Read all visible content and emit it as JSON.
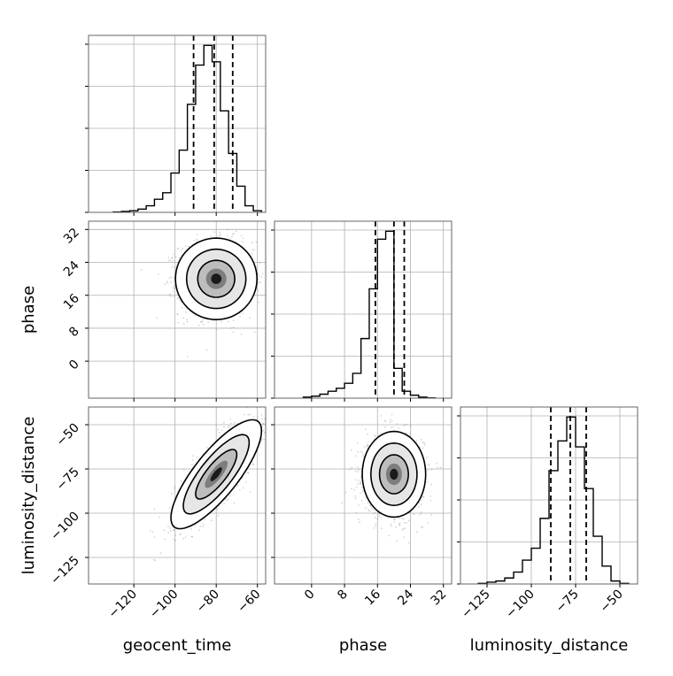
{
  "chart_data": {
    "type": "corner",
    "parameters": [
      "geocent_time",
      "phase",
      "luminosity_distance"
    ],
    "axis_labels": {
      "geocent_time": "geocent_time",
      "phase": "phase",
      "luminosity_distance": "luminosity_distance"
    },
    "ranges": {
      "geocent_time": [
        -142,
        -56
      ],
      "phase": [
        -9,
        34
      ],
      "luminosity_distance": [
        -140,
        -40
      ]
    },
    "ticks": {
      "geocent_time": [
        -120,
        -100,
        -80,
        -60
      ],
      "phase": [
        0,
        8,
        16,
        24,
        32
      ],
      "luminosity_distance": [
        -125,
        -100,
        -75,
        -50
      ]
    },
    "tick_labels": {
      "geocent_time": [
        "−120",
        "−100",
        "−80",
        "−60"
      ],
      "phase": [
        "0",
        "8",
        "16",
        "24",
        "32"
      ],
      "luminosity_distance": [
        "−125",
        "−100",
        "−75",
        "−50"
      ]
    },
    "quantile_lines": {
      "geocent_time": [
        -91,
        -81,
        -72
      ],
      "phase": [
        15.5,
        20,
        22.5
      ],
      "luminosity_distance": [
        -89,
        -78,
        -69
      ]
    },
    "histograms": {
      "geocent_time": {
        "bin_edges": [
          -130,
          -126,
          -122,
          -118,
          -114,
          -110,
          -106,
          -102,
          -98,
          -94,
          -90,
          -86,
          -82,
          -78,
          -74,
          -70,
          -66,
          -62,
          -58
        ],
        "counts": [
          0.2,
          0.6,
          1,
          2,
          4,
          8,
          12,
          24,
          38,
          66,
          90,
          102,
          92,
          62,
          36,
          16,
          4,
          1
        ]
      },
      "phase": {
        "bin_edges": [
          -2,
          0,
          2,
          4,
          6,
          8,
          10,
          12,
          14,
          16,
          18,
          20,
          22,
          24,
          26,
          28,
          30
        ],
        "counts": [
          1,
          2,
          4,
          7,
          10,
          15,
          25,
          60,
          110,
          160,
          168,
          30,
          7,
          3,
          1,
          0.3
        ]
      },
      "luminosity_distance": {
        "bin_edges": [
          -130,
          -125,
          -120,
          -115,
          -110,
          -105,
          -100,
          -95,
          -90,
          -85,
          -80,
          -75,
          -70,
          -65,
          -60,
          -55,
          -50,
          -45
        ],
        "counts": [
          0.2,
          0.6,
          1,
          2,
          4,
          8,
          12,
          22,
          38,
          48,
          56,
          46,
          32,
          16,
          6,
          1,
          0.2
        ]
      }
    },
    "joint_distributions": [
      {
        "x": "geocent_time",
        "y": "phase",
        "mean": [
          -80,
          20
        ],
        "std": [
          9,
          4.5
        ],
        "correlation": 0,
        "contour_levels_sigma": [
          1.0,
          1.6,
          2.2
        ]
      },
      {
        "x": "geocent_time",
        "y": "luminosity_distance",
        "mean": [
          -80,
          -78
        ],
        "std": [
          10,
          14
        ],
        "correlation": 0.8,
        "contour_levels_sigma": [
          1.0,
          1.6,
          2.2
        ]
      },
      {
        "x": "phase",
        "y": "luminosity_distance",
        "mean": [
          20,
          -78
        ],
        "std": [
          3.5,
          11
        ],
        "correlation": 0,
        "contour_levels_sigma": [
          1.0,
          1.6,
          2.2
        ]
      }
    ],
    "grid": true,
    "colors": {
      "line": "#000000",
      "grid": "#b0b0b0",
      "points": "#888888",
      "axes": "#666666"
    }
  }
}
